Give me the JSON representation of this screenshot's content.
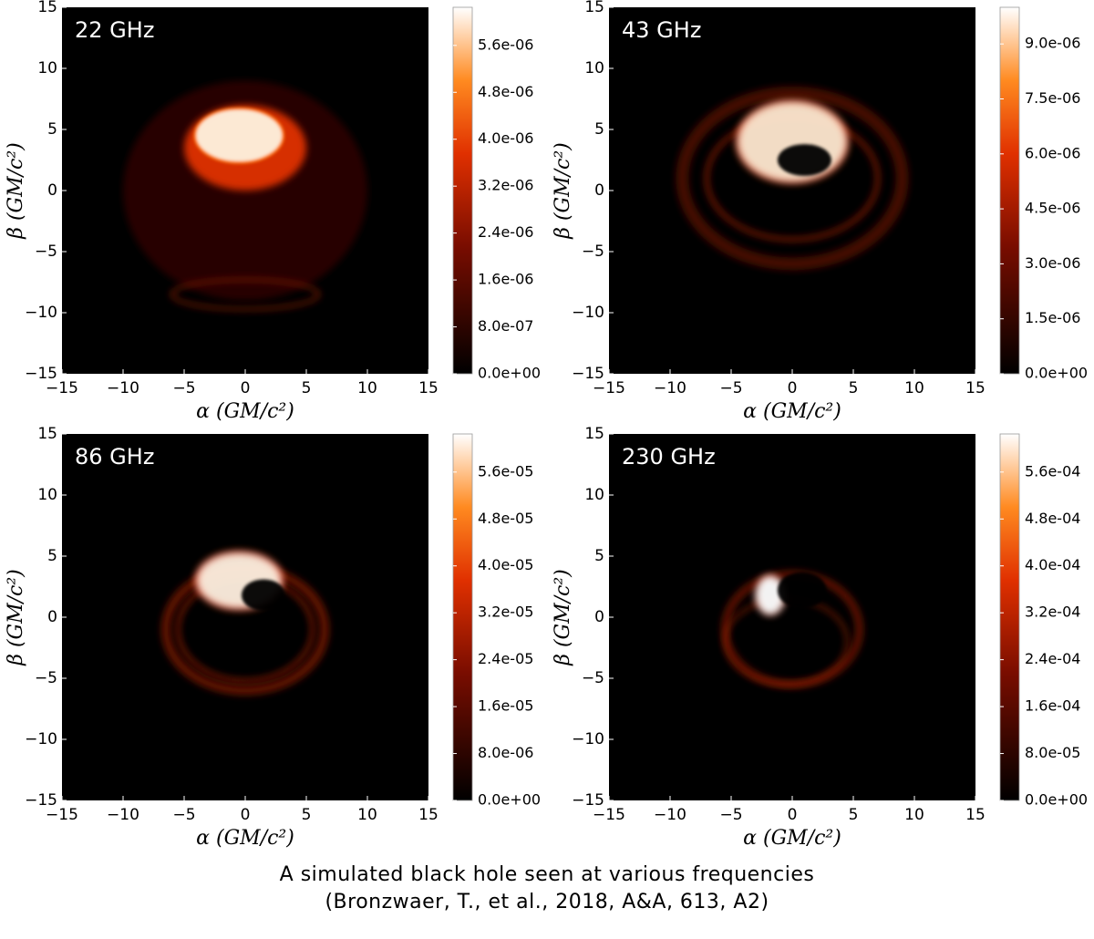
{
  "chart_data": [
    {
      "type": "image",
      "title": "22 GHz",
      "x_label": "α (GM/c²)",
      "y_label": "β (GM/c²)",
      "xlim": [
        -15,
        15
      ],
      "ylim": [
        -15,
        15
      ],
      "xticks": [
        {
          "value": -15,
          "label": "−15"
        },
        {
          "value": -10,
          "label": "−10"
        },
        {
          "value": -5,
          "label": "−5"
        },
        0,
        5,
        10,
        15
      ],
      "yticks": [
        {
          "value": -15,
          "label": "−15"
        },
        {
          "value": -10,
          "label": "−10"
        },
        {
          "value": -5,
          "label": "−5"
        },
        0,
        5,
        10,
        15
      ],
      "clim": [
        0,
        6.25e-06
      ],
      "cticks": [
        {
          "value": 0,
          "label": "0.0e+00"
        },
        {
          "value": 8e-07,
          "label": "8.0e-07"
        },
        {
          "value": 1.6e-06,
          "label": "1.6e-06"
        },
        {
          "value": 2.4e-06,
          "label": "2.4e-06"
        },
        {
          "value": 3.2e-06,
          "label": "3.2e-06"
        },
        {
          "value": 4e-06,
          "label": "4.0e-06"
        },
        {
          "value": 4.8e-06,
          "label": "4.8e-06"
        },
        {
          "value": 5.6e-06,
          "label": "5.6e-06"
        }
      ]
    },
    {
      "type": "image",
      "title": "43 GHz",
      "x_label": "α (GM/c²)",
      "y_label": "β (GM/c²)",
      "xlim": [
        -15,
        15
      ],
      "ylim": [
        -15,
        15
      ],
      "xticks": [
        {
          "value": -15,
          "label": "−15"
        },
        {
          "value": -10,
          "label": "−10"
        },
        {
          "value": -5,
          "label": "−5"
        },
        0,
        5,
        10,
        15
      ],
      "yticks": [
        {
          "value": -15,
          "label": "−15"
        },
        {
          "value": -10,
          "label": "−10"
        },
        {
          "value": -5,
          "label": "−5"
        },
        0,
        5,
        10,
        15
      ],
      "clim": [
        0,
        1e-05
      ],
      "cticks": [
        {
          "value": 0,
          "label": "0.0e+00"
        },
        {
          "value": 1.5e-06,
          "label": "1.5e-06"
        },
        {
          "value": 3e-06,
          "label": "3.0e-06"
        },
        {
          "value": 4.5e-06,
          "label": "4.5e-06"
        },
        {
          "value": 6e-06,
          "label": "6.0e-06"
        },
        {
          "value": 7.5e-06,
          "label": "7.5e-06"
        },
        {
          "value": 9e-06,
          "label": "9.0e-06"
        }
      ]
    },
    {
      "type": "image",
      "title": "86 GHz",
      "x_label": "α (GM/c²)",
      "y_label": "β (GM/c²)",
      "xlim": [
        -15,
        15
      ],
      "ylim": [
        -15,
        15
      ],
      "xticks": [
        {
          "value": -15,
          "label": "−15"
        },
        {
          "value": -10,
          "label": "−10"
        },
        {
          "value": -5,
          "label": "−5"
        },
        0,
        5,
        10,
        15
      ],
      "yticks": [
        {
          "value": -15,
          "label": "−15"
        },
        {
          "value": -10,
          "label": "−10"
        },
        {
          "value": -5,
          "label": "−5"
        },
        0,
        5,
        10,
        15
      ],
      "clim": [
        0,
        6.25e-05
      ],
      "cticks": [
        {
          "value": 0,
          "label": "0.0e+00"
        },
        {
          "value": 8e-06,
          "label": "8.0e-06"
        },
        {
          "value": 1.6e-05,
          "label": "1.6e-05"
        },
        {
          "value": 2.4e-05,
          "label": "2.4e-05"
        },
        {
          "value": 3.2e-05,
          "label": "3.2e-05"
        },
        {
          "value": 4e-05,
          "label": "4.0e-05"
        },
        {
          "value": 4.8e-05,
          "label": "4.8e-05"
        },
        {
          "value": 5.6e-05,
          "label": "5.6e-05"
        }
      ]
    },
    {
      "type": "image",
      "title": "230 GHz",
      "x_label": "α (GM/c²)",
      "y_label": "β (GM/c²)",
      "xlim": [
        -15,
        15
      ],
      "ylim": [
        -15,
        15
      ],
      "xticks": [
        {
          "value": -15,
          "label": "−15"
        },
        {
          "value": -10,
          "label": "−10"
        },
        {
          "value": -5,
          "label": "−5"
        },
        0,
        5,
        10,
        15
      ],
      "yticks": [
        {
          "value": -15,
          "label": "−15"
        },
        {
          "value": -10,
          "label": "−10"
        },
        {
          "value": -5,
          "label": "−5"
        },
        0,
        5,
        10,
        15
      ],
      "clim": [
        0,
        0.000625
      ],
      "cticks": [
        {
          "value": 0,
          "label": "0.0e+00"
        },
        {
          "value": 8e-05,
          "label": "8.0e-05"
        },
        {
          "value": 0.00016,
          "label": "1.6e-04"
        },
        {
          "value": 0.00024,
          "label": "2.4e-04"
        },
        {
          "value": 0.00032,
          "label": "3.2e-04"
        },
        {
          "value": 0.0004,
          "label": "4.0e-04"
        },
        {
          "value": 0.00048,
          "label": "4.8e-04"
        },
        {
          "value": 0.00056,
          "label": "5.6e-04"
        }
      ]
    }
  ],
  "caption": [
    "A simulated black hole seen at various frequencies",
    "(Bronzwaer, T., et al., 2018, A&A, 613, A2)"
  ]
}
